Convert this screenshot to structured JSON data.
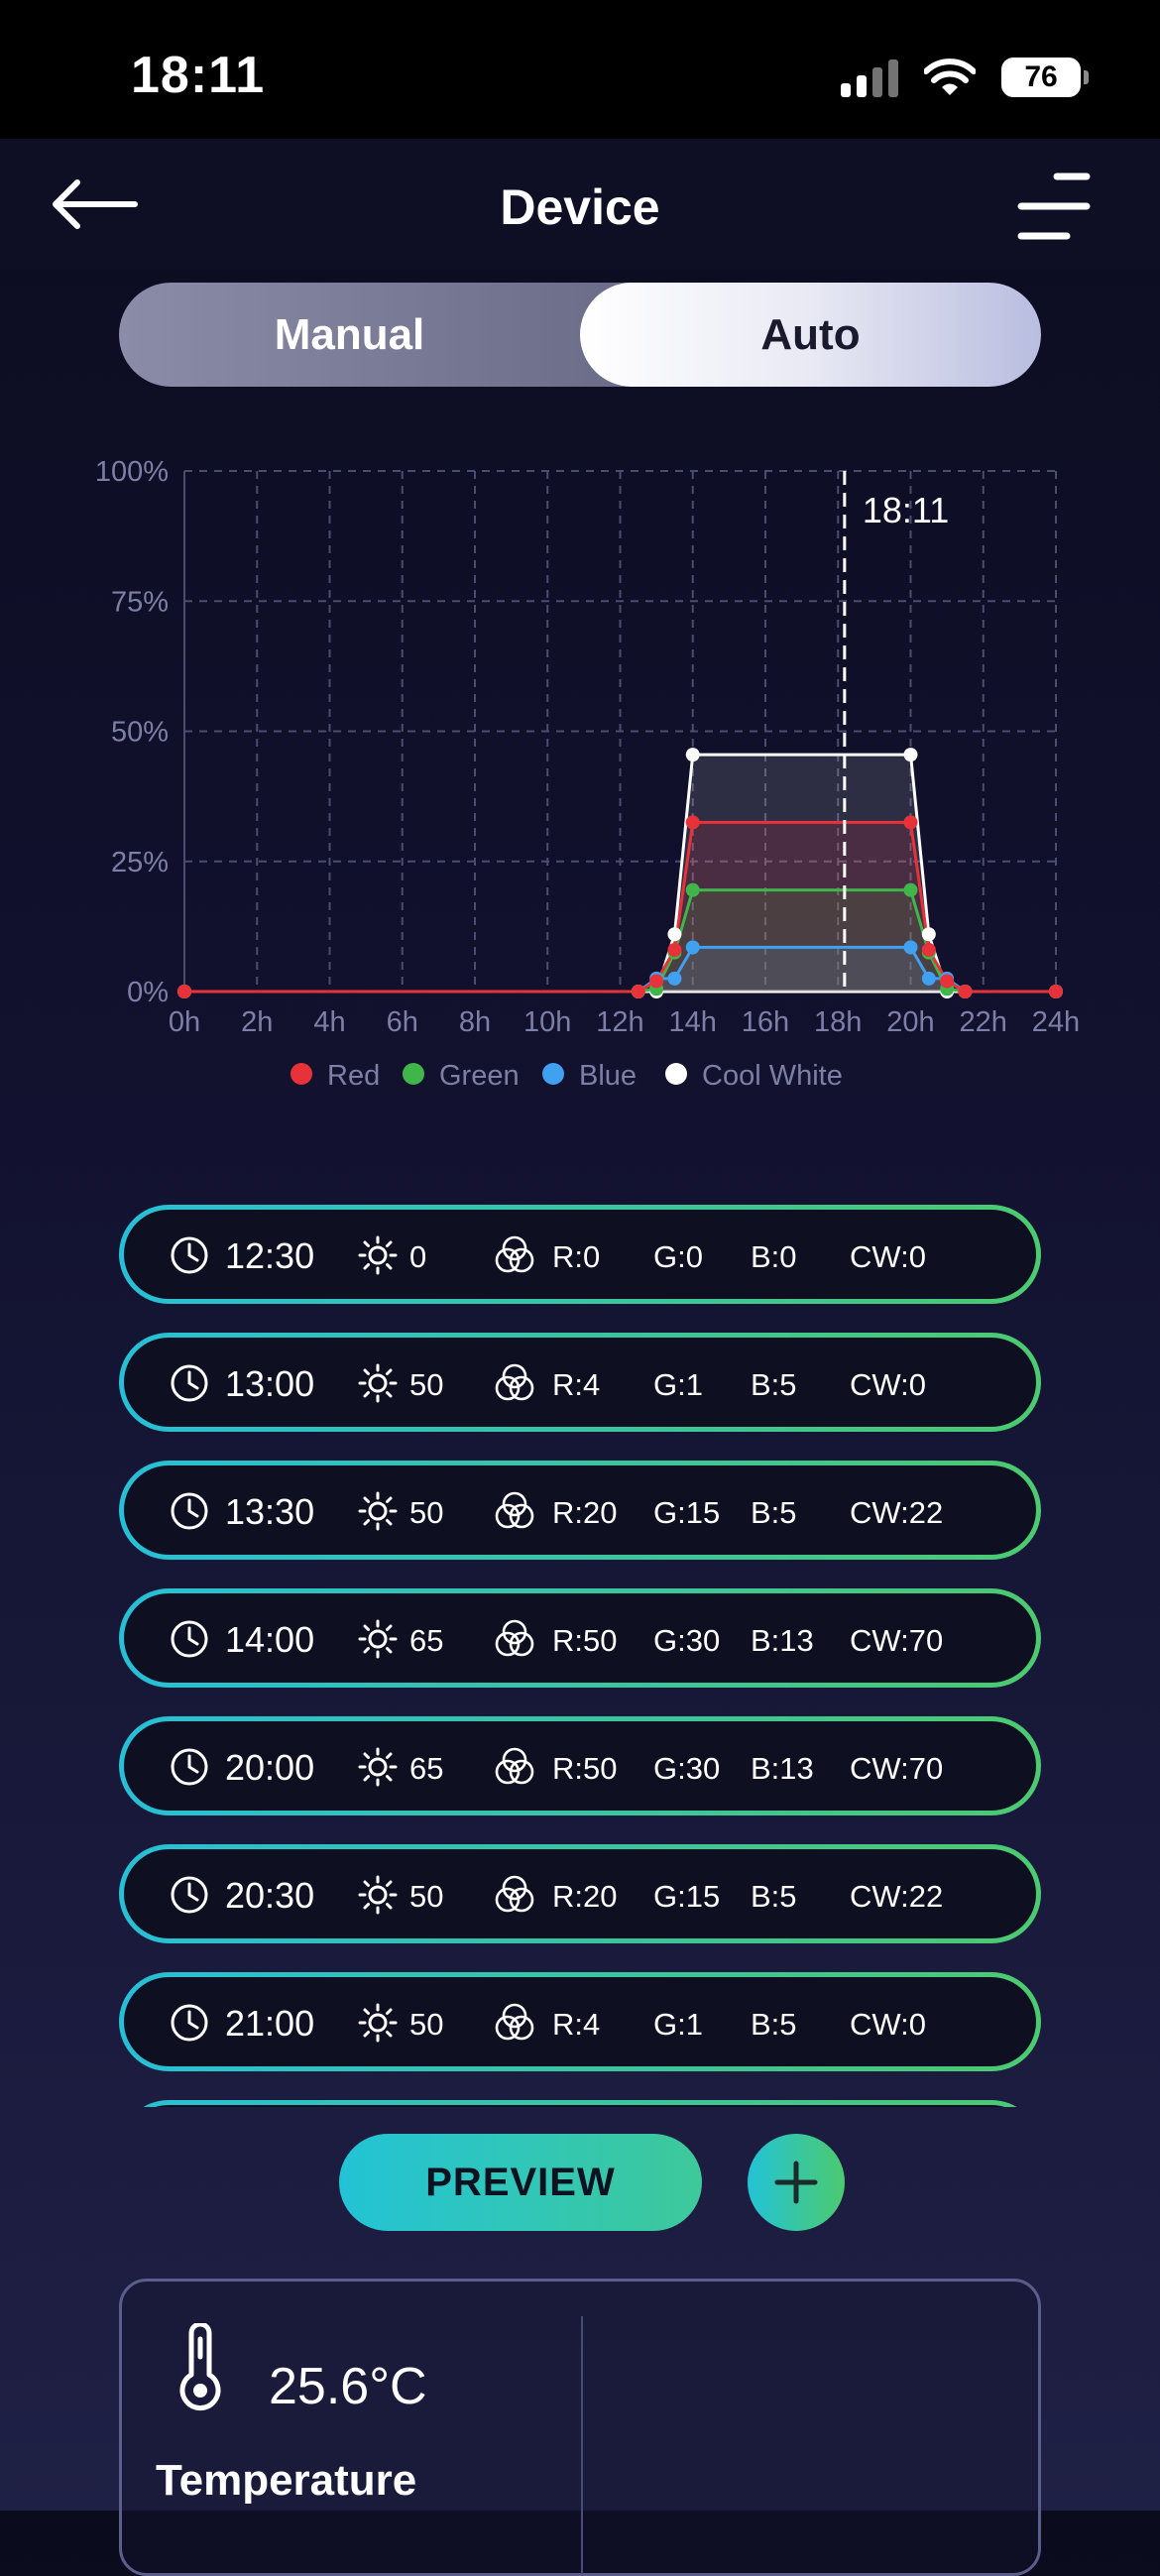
{
  "status_bar": {
    "time": "18:11",
    "battery": "76"
  },
  "header": {
    "title": "Device"
  },
  "mode_toggle": {
    "manual_label": "Manual",
    "auto_label": "Auto",
    "selected": "Auto"
  },
  "chart_data": {
    "type": "line",
    "x_ticks": [
      "0h",
      "2h",
      "4h",
      "6h",
      "8h",
      "10h",
      "12h",
      "14h",
      "16h",
      "18h",
      "20h",
      "22h",
      "24h"
    ],
    "y_ticks": [
      "0%",
      "25%",
      "50%",
      "75%",
      "100%"
    ],
    "xlim": [
      0,
      24
    ],
    "ylim": [
      0,
      100
    ],
    "grid": true,
    "current_time_label": "18:11",
    "current_time_hours": 18.18,
    "legend": [
      "Red",
      "Green",
      "Blue",
      "Cool White"
    ],
    "legend_position": "bottom",
    "series": [
      {
        "name": "Red",
        "color": "#e8323a",
        "x": [
          0,
          12.5,
          13,
          13.5,
          14,
          20,
          20.5,
          21,
          21.5,
          24
        ],
        "y": [
          0,
          0,
          2,
          8,
          32.5,
          32.5,
          8,
          2,
          0,
          0
        ]
      },
      {
        "name": "Green",
        "color": "#3fb54a",
        "x": [
          0,
          12.5,
          13,
          13.5,
          14,
          20,
          20.5,
          21,
          21.5,
          24
        ],
        "y": [
          0,
          0,
          0.5,
          7.5,
          19.5,
          19.5,
          7.5,
          0.5,
          0,
          0
        ]
      },
      {
        "name": "Blue",
        "color": "#3fa1f0",
        "x": [
          0,
          12.5,
          13,
          13.5,
          14,
          20,
          20.5,
          21,
          21.5,
          24
        ],
        "y": [
          0,
          0,
          2.5,
          2.5,
          8.5,
          8.5,
          2.5,
          2.5,
          0,
          0
        ]
      },
      {
        "name": "Cool White",
        "color": "#ffffff",
        "x": [
          0,
          12.5,
          13,
          13.5,
          14,
          20,
          20.5,
          21,
          21.5,
          24
        ],
        "y": [
          0,
          0,
          0,
          11,
          45.5,
          45.5,
          11,
          0,
          0,
          0
        ]
      }
    ]
  },
  "schedule": [
    {
      "time": "12:30",
      "brightness": "0",
      "r": "R:0",
      "g": "G:0",
      "b": "B:0",
      "cw": "CW:0"
    },
    {
      "time": "13:00",
      "brightness": "50",
      "r": "R:4",
      "g": "G:1",
      "b": "B:5",
      "cw": "CW:0"
    },
    {
      "time": "13:30",
      "brightness": "50",
      "r": "R:20",
      "g": "G:15",
      "b": "B:5",
      "cw": "CW:22"
    },
    {
      "time": "14:00",
      "brightness": "65",
      "r": "R:50",
      "g": "G:30",
      "b": "B:13",
      "cw": "CW:70"
    },
    {
      "time": "20:00",
      "brightness": "65",
      "r": "R:50",
      "g": "G:30",
      "b": "B:13",
      "cw": "CW:70"
    },
    {
      "time": "20:30",
      "brightness": "50",
      "r": "R:20",
      "g": "G:15",
      "b": "B:5",
      "cw": "CW:22"
    },
    {
      "time": "21:00",
      "brightness": "50",
      "r": "R:4",
      "g": "G:1",
      "b": "B:5",
      "cw": "CW:0"
    },
    {
      "time": "",
      "brightness": "",
      "r": "",
      "g": "",
      "b": "",
      "cw": ""
    }
  ],
  "actions": {
    "preview_label": "PREVIEW"
  },
  "info_card": {
    "temperature_value": "25.6°C",
    "temperature_label": "Temperature"
  },
  "icons": {
    "back": "arrow-left-icon",
    "menu": "menu-icon",
    "clock": "clock-icon",
    "brightness": "sun-icon",
    "color": "rgb-circles-icon",
    "add": "plus-icon",
    "temperature": "thermometer-icon"
  }
}
